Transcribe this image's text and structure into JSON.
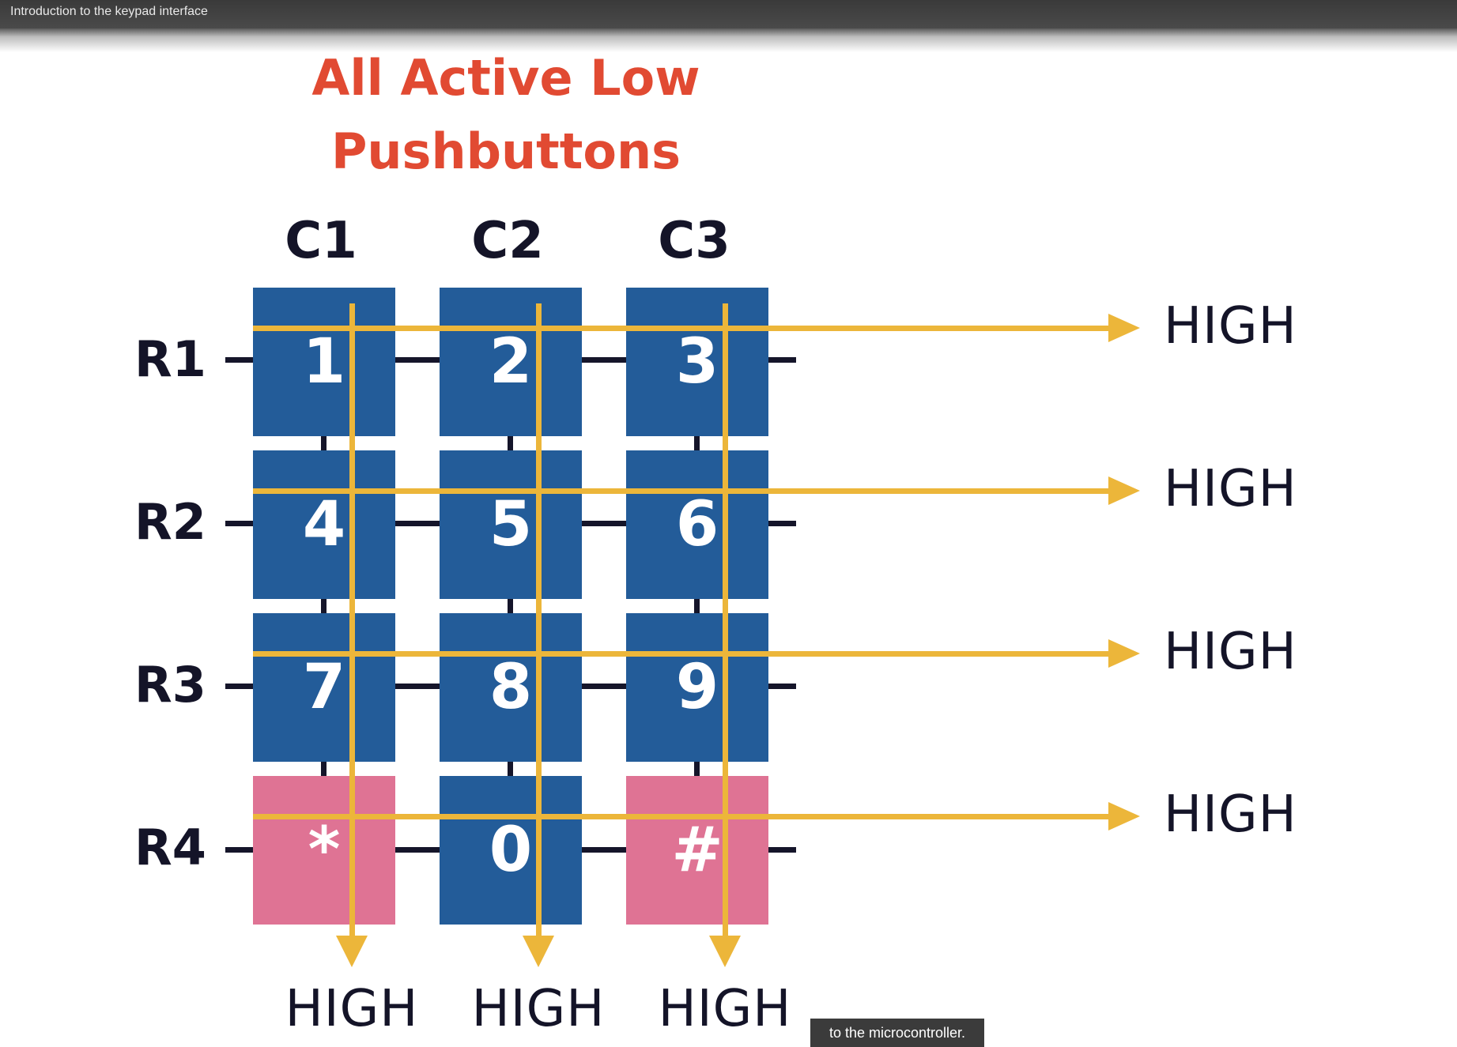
{
  "video": {
    "title": "Introduction to the keypad interface",
    "subtitle": "to the microcontroller."
  },
  "slide": {
    "heading_line1": "All Active Low",
    "heading_line2": "Pushbuttons",
    "columns": [
      "C1",
      "C2",
      "C3"
    ],
    "rows": [
      "R1",
      "R2",
      "R3",
      "R4"
    ],
    "keys": [
      [
        "1",
        "2",
        "3"
      ],
      [
        "4",
        "5",
        "6"
      ],
      [
        "7",
        "8",
        "9"
      ],
      [
        "*",
        "0",
        "#"
      ]
    ],
    "row_outputs": [
      "HIGH",
      "HIGH",
      "HIGH",
      "HIGH"
    ],
    "column_outputs": [
      "HIGH",
      "HIGH",
      "HIGH"
    ],
    "colors": {
      "heading": "#e14a32",
      "key_blue": "#235c99",
      "key_pink": "#df7394",
      "arrow": "#ecb63a",
      "text_dark": "#141428"
    }
  }
}
